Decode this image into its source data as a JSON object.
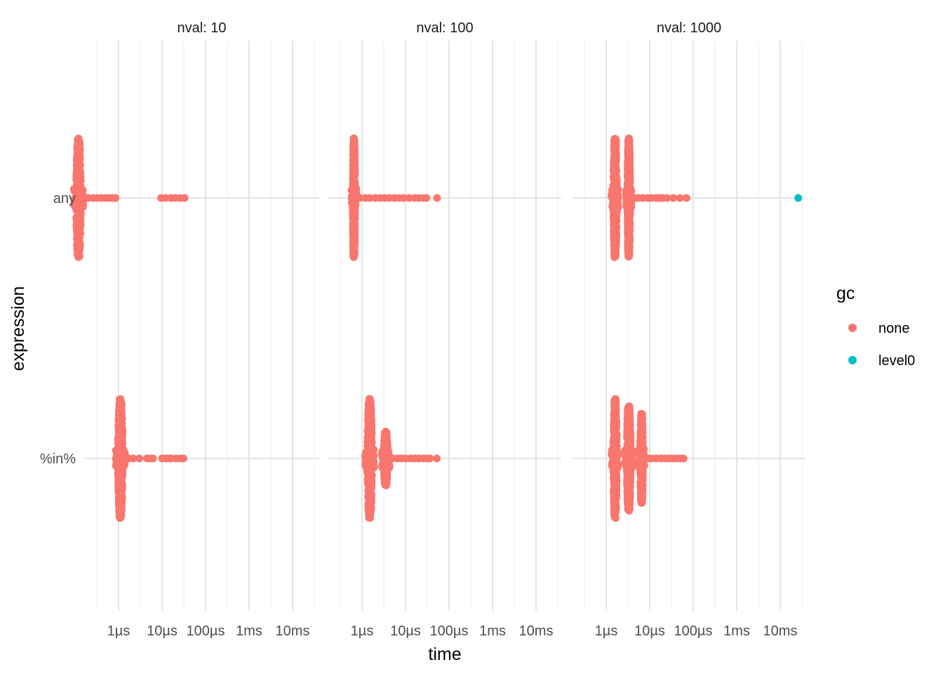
{
  "chart_data": {
    "type": "scatter",
    "subtype": "beeswarm facets",
    "xlabel": "time",
    "ylabel": "expression",
    "x_scale": "log10",
    "x_range": [
      "1e-7",
      "0.04"
    ],
    "x_ticks": [
      {
        "value": 1e-06,
        "label": "1µs"
      },
      {
        "value": 1e-05,
        "label": "10µs"
      },
      {
        "value": 0.0001,
        "label": "100µs"
      },
      {
        "value": 0.001,
        "label": "1ms"
      },
      {
        "value": 0.01,
        "label": "10ms"
      }
    ],
    "categories": [
      "any",
      "%in%"
    ],
    "grid": true,
    "legend": {
      "title": "gc",
      "position": "right",
      "entries": [
        {
          "label": "none",
          "color": "#F8766D"
        },
        {
          "label": "level0",
          "color": "#00BFC4"
        }
      ]
    },
    "panels": [
      {
        "title": "nval: 10",
        "swarms": [
          {
            "category": "any",
            "gc": "none",
            "center": 1.2e-07,
            "spread": 0.4,
            "width_log": 0.12
          },
          {
            "category": "%in%",
            "gc": "none",
            "center": 1.1e-06,
            "spread": 0.4,
            "width_log": 0.12
          }
        ],
        "outliers": [
          {
            "category": "any",
            "gc": "none",
            "x": [
              2e-07,
              2.6e-07,
              3.2e-07,
              4e-07,
              5e-07,
              6.2e-07,
              7.5e-07,
              8.5e-07,
              9.5e-06,
              1.2e-05,
              1.6e-05,
              2e-05,
              2.6e-05,
              3.3e-05
            ]
          },
          {
            "category": "%in%",
            "gc": "none",
            "x": [
              1.7e-06,
              2.2e-06,
              3e-06,
              4.5e-06,
              5.3e-06,
              6.2e-06,
              1e-05,
              1.2e-05,
              1.4e-05,
              1.6e-05,
              2.1e-05,
              2.7e-05,
              3.1e-05
            ]
          }
        ]
      },
      {
        "title": "nval: 100",
        "swarms": [
          {
            "category": "any",
            "gc": "none",
            "center": 6.5e-07,
            "spread": 0.4,
            "width_log": 0.06
          },
          {
            "category": "%in%",
            "gc": "none",
            "center": 1.5e-06,
            "spread": 0.4,
            "width_log": 0.12
          },
          {
            "category": "%in%",
            "gc": "none",
            "center": 3.5e-06,
            "spread": 0.18,
            "width_log": 0.1
          }
        ],
        "outliers": [
          {
            "category": "any",
            "gc": "none",
            "x": [
              9e-07,
              1.2e-06,
              1.5e-06,
              2e-06,
              2.6e-06,
              3.3e-06,
              4.2e-06,
              5.5e-06,
              7e-06,
              9e-06,
              1.2e-05,
              1.6e-05,
              2e-05,
              2.5e-05,
              3e-05,
              5.3e-05
            ]
          },
          {
            "category": "%in%",
            "gc": "none",
            "x": [
              5e-06,
              6.5e-06,
              8e-06,
              1e-05,
              1.3e-05,
              1.6e-05,
              2e-05,
              2.5e-05,
              3e-05,
              3.6e-05,
              5.2e-05
            ]
          }
        ]
      },
      {
        "title": "nval: 1000",
        "swarms": [
          {
            "category": "any",
            "gc": "none",
            "center": 1.6e-06,
            "spread": 0.4,
            "width_log": 0.09
          },
          {
            "category": "any",
            "gc": "none",
            "center": 3.3e-06,
            "spread": 0.4,
            "width_log": 0.07
          },
          {
            "category": "%in%",
            "gc": "none",
            "center": 1.6e-06,
            "spread": 0.4,
            "width_log": 0.09
          },
          {
            "category": "%in%",
            "gc": "none",
            "center": 3.3e-06,
            "spread": 0.35,
            "width_log": 0.1
          },
          {
            "category": "%in%",
            "gc": "none",
            "center": 6.5e-06,
            "spread": 0.3,
            "width_log": 0.07
          }
        ],
        "outliers": [
          {
            "category": "any",
            "gc": "none",
            "x": [
              4.5e-06,
              5.5e-06,
              7e-06,
              9e-06,
              1.1e-05,
              1.4e-05,
              1.7e-05,
              2e-05,
              2.5e-05,
              3.5e-05,
              5e-05,
              7e-05
            ]
          },
          {
            "category": "any",
            "gc": "level0",
            "x": [
              0.026
            ]
          },
          {
            "category": "%in%",
            "gc": "none",
            "x": [
              9e-06,
              1.1e-05,
              1.4e-05,
              1.8e-05,
              2.2e-05,
              2.7e-05,
              3.3e-05,
              4e-05,
              5e-05,
              6e-05
            ]
          }
        ]
      }
    ]
  }
}
